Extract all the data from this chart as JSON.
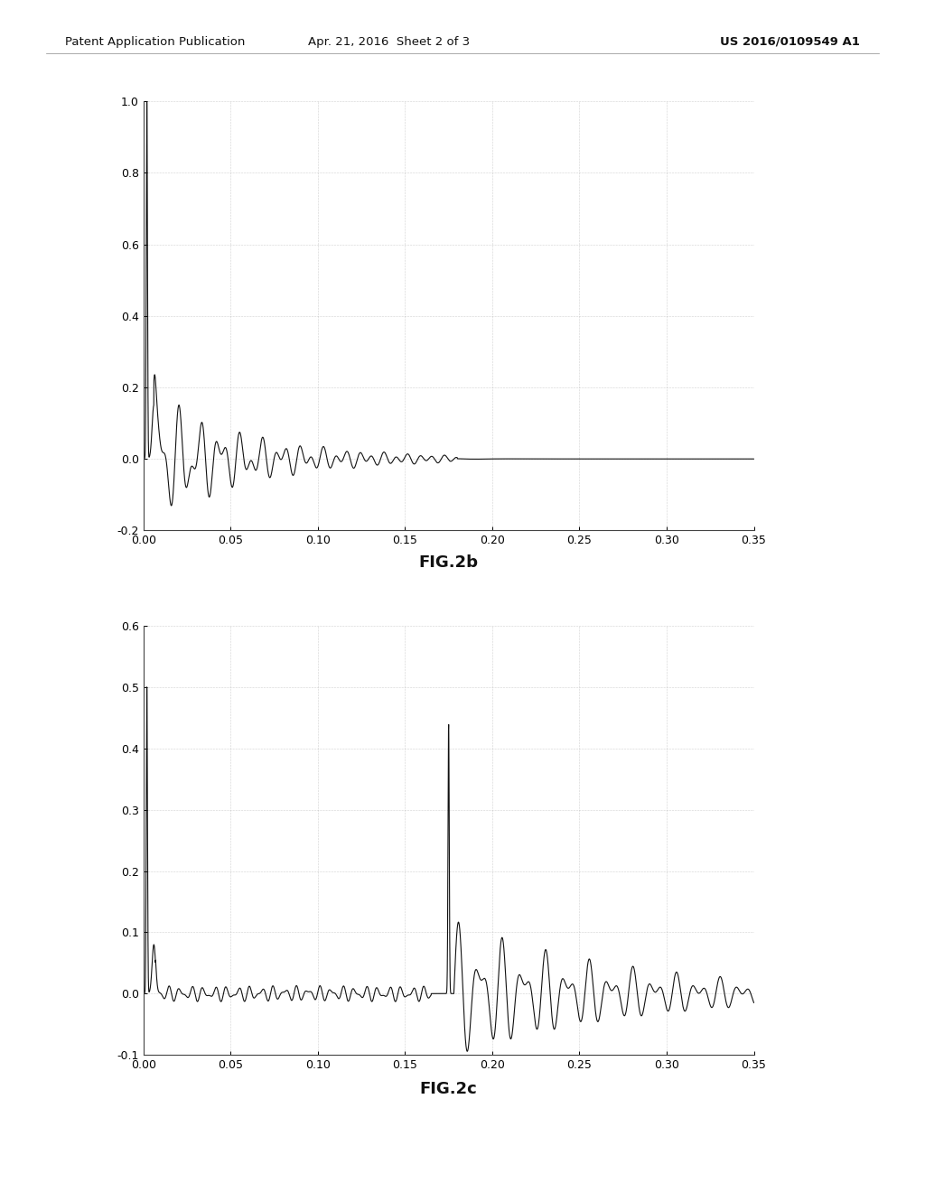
{
  "header_left": "Patent Application Publication",
  "header_center": "Apr. 21, 2016  Sheet 2 of 3",
  "header_right": "US 2016/0109549 A1",
  "fig_label_top": "FIG.2b",
  "fig_label_bottom": "FIG.2c",
  "plot1": {
    "xlim": [
      0,
      0.35
    ],
    "ylim": [
      -0.2,
      1.0
    ],
    "xticks": [
      0.0,
      0.05,
      0.1,
      0.15,
      0.2,
      0.25,
      0.3,
      0.35
    ],
    "yticks": [
      -0.2,
      0.0,
      0.2,
      0.4,
      0.6,
      0.8,
      1.0
    ],
    "xtick_labels": [
      "0.00",
      "0.05",
      "0.10",
      "0.15",
      "0.20",
      "0.25",
      "0.30",
      "0.35"
    ],
    "ytick_labels": [
      "-0.2",
      "0.0",
      "0.2",
      "0.4",
      "0.6",
      "0.8",
      "1.0"
    ]
  },
  "plot2": {
    "xlim": [
      0,
      0.35
    ],
    "ylim": [
      -0.1,
      0.6
    ],
    "xticks": [
      0.0,
      0.05,
      0.1,
      0.15,
      0.2,
      0.25,
      0.3,
      0.35
    ],
    "yticks": [
      -0.1,
      0.0,
      0.1,
      0.2,
      0.3,
      0.4,
      0.5,
      0.6
    ],
    "xtick_labels": [
      "0.00",
      "0.05",
      "0.10",
      "0.15",
      "0.20",
      "0.25",
      "0.30",
      "0.35"
    ],
    "ytick_labels": [
      "-0.1",
      "0.0",
      "0.1",
      "0.2",
      "0.3",
      "0.4",
      "0.5",
      "0.6"
    ]
  },
  "background_color": "#ffffff",
  "line_color": "#111111",
  "header_color": "#111111",
  "fig_width": 10.24,
  "fig_height": 13.2,
  "dpi": 100
}
